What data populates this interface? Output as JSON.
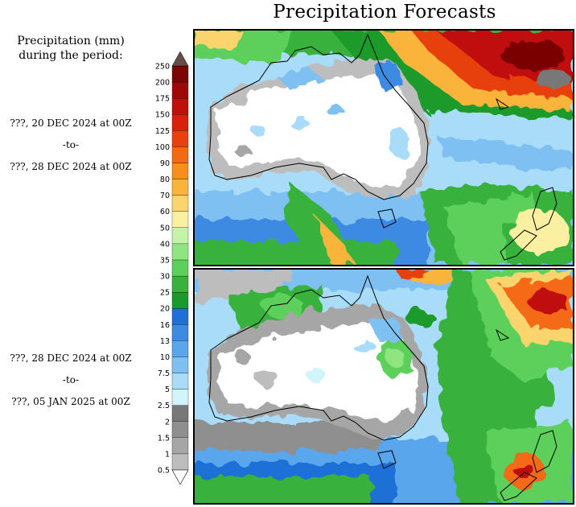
{
  "title": "Precipitation Forecasts",
  "legend": {
    "title_line1": "Precipitation (mm)",
    "title_line2": "during the period:",
    "unit": "mm",
    "levels": [
      "0.5",
      "1",
      "1.5",
      "2",
      "2.5",
      "5",
      "7.5",
      "10",
      "13",
      "16",
      "20",
      "25",
      "30",
      "35",
      "40",
      "50",
      "60",
      "70",
      "80",
      "90",
      "100",
      "125",
      "150",
      "175",
      "200",
      "250"
    ],
    "colors": [
      "#bdbdbd",
      "#a6a6a6",
      "#8f8f8f",
      "#787878",
      "#d2f4fb",
      "#a9dcf8",
      "#7fc0f2",
      "#5aa6ec",
      "#3c8ae2",
      "#1f6fd6",
      "#1a9a2a",
      "#38b23c",
      "#5cd05a",
      "#8fe680",
      "#c2f5a8",
      "#fbf0a2",
      "#fbd46e",
      "#fbb43a",
      "#f98f1a",
      "#f46a12",
      "#e8410f",
      "#d8200c",
      "#c0100a",
      "#a00808",
      "#7a0606",
      "#644e46"
    ]
  },
  "periods": [
    {
      "start": "???, 20 DEC 2024 at 00Z",
      "to": "-to-",
      "end": "???, 28 DEC 2024 at 00Z"
    },
    {
      "start": "???, 28 DEC 2024 at 00Z",
      "to": "-to-",
      "end": "???, 05 JAN 2025 at 00Z"
    }
  ]
}
